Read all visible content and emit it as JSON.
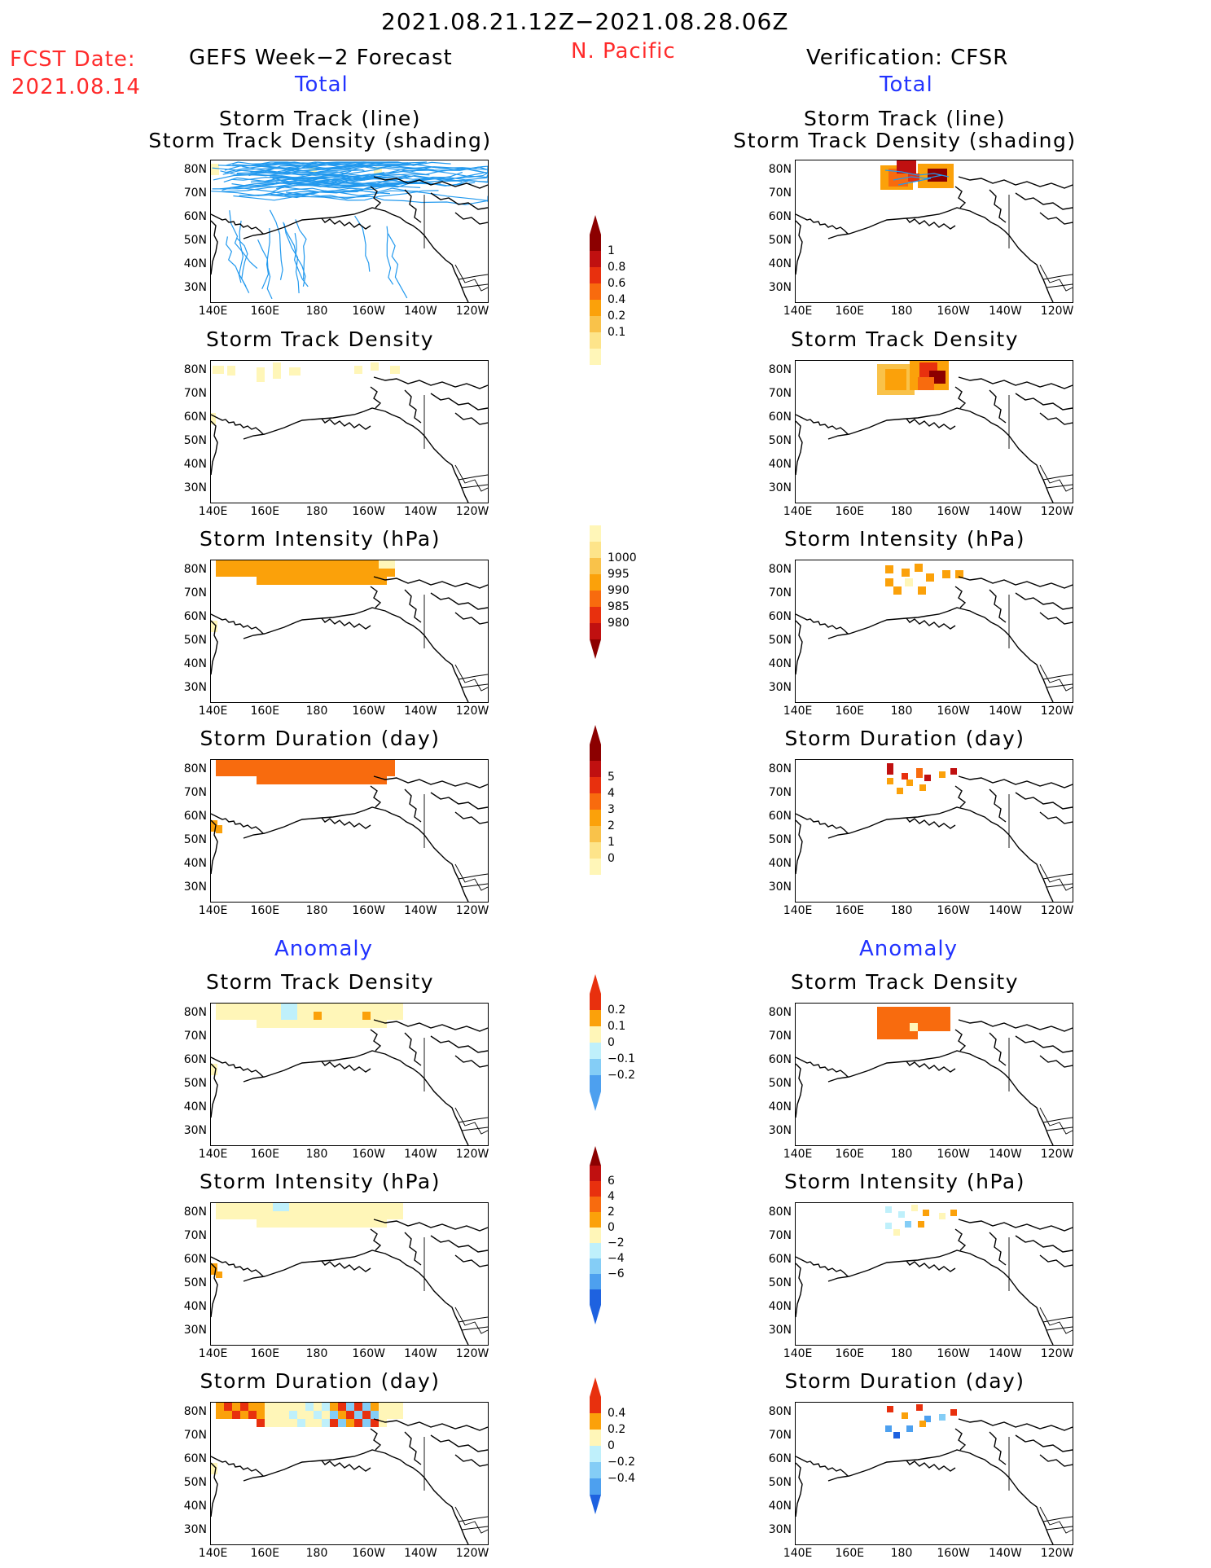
{
  "header": {
    "period": "2021.08.21.12Z−2021.08.28.06Z",
    "region": "N. Pacific",
    "fcst_label": "FCST Date:",
    "fcst_date": "2021.08.14",
    "left_title": "GEFS Week−2 Forecast",
    "right_title": "Verification: CFSR",
    "total_label": "Total",
    "anomaly_label": "Anomaly"
  },
  "axes": {
    "lat_ticks": [
      "80N",
      "70N",
      "60N",
      "50N",
      "40N",
      "30N"
    ],
    "lon_ticks": [
      "140E",
      "160E",
      "180",
      "160W",
      "140W",
      "120W"
    ]
  },
  "panel_titles": {
    "track_line": "Storm Track (line)",
    "track_density_shading": "Storm Track Density (shading)",
    "track_density": "Storm Track Density",
    "intensity": "Storm Intensity (hPa)",
    "duration": "Storm Duration (day)"
  },
  "colorbars": {
    "density_total": [
      "1",
      "0.8",
      "0.6",
      "0.4",
      "0.2",
      "0.1"
    ],
    "intensity_total": [
      "1000",
      "995",
      "990",
      "985",
      "980"
    ],
    "duration_total": [
      "5",
      "4",
      "3",
      "2",
      "1",
      "0"
    ],
    "density_anom": [
      "0.2",
      "0.1",
      "0",
      "−0.1",
      "−0.2"
    ],
    "intensity_anom": [
      "6",
      "4",
      "2",
      "0",
      "−2",
      "−4",
      "−6"
    ],
    "duration_anom": [
      "0.4",
      "0.2",
      "0",
      "−0.2",
      "−0.4"
    ]
  },
  "colors": {
    "c1": "#fff6b8",
    "c2": "#fde48a",
    "c3": "#f9c24a",
    "c4": "#fba10a",
    "c5": "#f86b0e",
    "c6": "#e8300e",
    "c7": "#c01010",
    "c8": "#8c0000",
    "b1": "#bff0fb",
    "b2": "#84cdf6",
    "b3": "#4da0ef",
    "b4": "#1e62e0",
    "track": "#2299ee"
  },
  "chart_data": [
    {
      "type": "heatmap",
      "title": "GEFS Week-2 Forecast: Storm Track (line) / Storm Track Density (shading)",
      "note": "many forecast tracks across 35N-85N, 140E-115W"
    },
    {
      "type": "heatmap",
      "title": "Verification CFSR: Storm Track (line) / Storm Track Density (shading)",
      "max_density": 1.0,
      "region": "75N-85N, 175W-150W"
    },
    {
      "type": "heatmap",
      "title": "GEFS Storm Track Density",
      "values_range": [
        0.1,
        0.2
      ]
    },
    {
      "type": "heatmap",
      "title": "CFSR Storm Track Density",
      "values_range": [
        0.1,
        1.0
      ]
    },
    {
      "type": "heatmap",
      "title": "GEFS Storm Intensity (hPa)",
      "typical": 995
    },
    {
      "type": "heatmap",
      "title": "CFSR Storm Intensity (hPa)",
      "typical": 995
    },
    {
      "type": "heatmap",
      "title": "GEFS Storm Duration (day)",
      "typical": 3
    },
    {
      "type": "heatmap",
      "title": "CFSR Storm Duration (day)",
      "range": [
        1,
        5
      ]
    },
    {
      "type": "heatmap",
      "title": "GEFS Storm Track Density anomaly",
      "range": [
        -0.1,
        0.1
      ]
    },
    {
      "type": "heatmap",
      "title": "CFSR Storm Track Density anomaly",
      "range": [
        0.1,
        0.3
      ]
    },
    {
      "type": "heatmap",
      "title": "GEFS Storm Intensity anomaly (hPa)",
      "range": [
        -2,
        2
      ]
    },
    {
      "type": "heatmap",
      "title": "CFSR Storm Intensity anomaly (hPa)",
      "range": [
        -4,
        4
      ]
    },
    {
      "type": "heatmap",
      "title": "GEFS Storm Duration anomaly (day)",
      "range": [
        -0.2,
        0.4
      ]
    },
    {
      "type": "heatmap",
      "title": "CFSR Storm Duration anomaly (day)",
      "range": [
        -0.4,
        0.4
      ]
    }
  ]
}
